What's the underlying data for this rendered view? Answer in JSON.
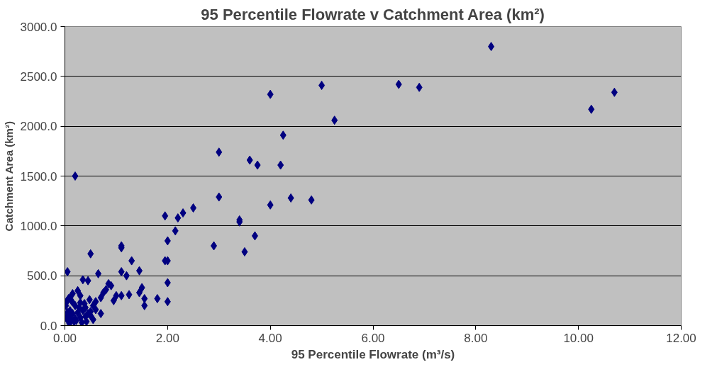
{
  "chart_data": {
    "type": "scatter",
    "title": "95 Percentile Flowrate v Catchment Area (km²)",
    "xlabel": "95 Percentile Flowrate (m³/s)",
    "ylabel": "Catchment Area (km²)",
    "xlim": [
      0,
      12
    ],
    "ylim": [
      0,
      3000
    ],
    "xticks": [
      {
        "value": 0,
        "label": "0.00"
      },
      {
        "value": 2,
        "label": "2.00"
      },
      {
        "value": 4,
        "label": "4.00"
      },
      {
        "value": 6,
        "label": "6.00"
      },
      {
        "value": 8,
        "label": "8.00"
      },
      {
        "value": 10,
        "label": "10.00"
      },
      {
        "value": 12,
        "label": "12.00"
      }
    ],
    "yticks": [
      {
        "value": 0,
        "label": "0.0"
      },
      {
        "value": 500,
        "label": "500.0"
      },
      {
        "value": 1000,
        "label": "1000.0"
      },
      {
        "value": 1500,
        "label": "1500.0"
      },
      {
        "value": 2000,
        "label": "2000.0"
      },
      {
        "value": 2500,
        "label": "2500.0"
      },
      {
        "value": 3000,
        "label": "3000.0"
      }
    ],
    "grid": "y",
    "marker": "diamond",
    "series": [
      {
        "color": "#000080",
        "x": [
          4.0,
          5.0,
          6.5,
          6.9,
          8.3,
          10.25,
          10.7,
          5.25,
          4.25,
          3.0,
          3.6,
          3.75,
          4.2,
          3.0,
          3.4,
          3.4,
          4.0,
          4.4,
          4.8,
          2.9,
          3.5,
          3.7,
          2.5,
          2.3,
          2.2,
          2.15,
          1.95,
          2.0,
          1.95,
          2.0,
          2.0,
          2.0,
          1.8,
          1.55,
          1.55,
          1.5,
          1.45,
          1.45,
          1.3,
          1.1,
          1.1,
          1.1,
          1.2,
          1.25,
          1.1,
          0.9,
          0.2,
          0.05,
          0.5,
          0.65,
          0.35,
          0.45,
          0.85,
          0.8,
          1.0,
          0.95,
          0.75,
          0.7,
          0.6,
          0.55,
          0.3,
          0.25,
          0.15,
          0.1,
          0.05,
          0.02,
          0.4,
          0.3,
          0.2,
          0.1,
          0.05,
          0.5,
          0.45,
          0.35,
          0.25,
          0.15,
          0.08,
          0.03,
          0.6,
          0.5,
          0.4,
          0.3,
          0.2,
          0.12,
          0.06,
          0.7,
          0.55,
          0.42,
          0.33,
          0.22,
          0.18,
          0.09,
          0.28,
          0.38,
          0.48,
          0.14,
          0.07
        ],
        "values": [
          2320,
          2410,
          2420,
          2390,
          2800,
          2170,
          2340,
          2060,
          1910,
          1740,
          1660,
          1610,
          1610,
          1290,
          1060,
          1040,
          1210,
          1280,
          1260,
          800,
          740,
          900,
          1180,
          1130,
          1080,
          950,
          1100,
          850,
          650,
          650,
          430,
          240,
          270,
          270,
          200,
          380,
          330,
          550,
          650,
          800,
          780,
          540,
          500,
          310,
          300,
          400,
          1500,
          540,
          720,
          520,
          460,
          450,
          420,
          360,
          300,
          250,
          330,
          280,
          240,
          200,
          300,
          350,
          320,
          280,
          250,
          200,
          180,
          230,
          200,
          150,
          130,
          100,
          120,
          150,
          130,
          120,
          100,
          80,
          160,
          140,
          90,
          80,
          70,
          60,
          50,
          120,
          60,
          40,
          30,
          50,
          40,
          20,
          180,
          220,
          260,
          240,
          270
        ]
      }
    ]
  }
}
